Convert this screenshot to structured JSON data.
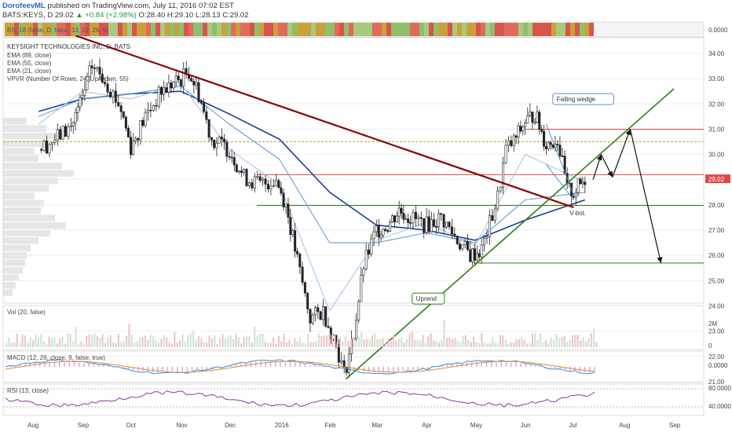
{
  "header": {
    "author": "DorofeevML",
    "published_text": "published on TradingView.com, July 11, 2016 07:02 EST",
    "symbol_line": "BATS:KEYS, D",
    "last": "29.02",
    "change": "▲ +0.84 (+2.98%)",
    "open": "O:28.40",
    "high": "H:29.10",
    "low": "L:28.13",
    "close": "C:29.02"
  },
  "chart_data": {
    "type": "line",
    "title": "KEYSIGHT TECHNOLOGIES INC, D, BATS",
    "legend": [
      "EMA (89, close)",
      "EMA (55, close)",
      "EMA (21, close)",
      "VPVR (Number Of Rows, 24, Up/Down, 55)"
    ],
    "top_strip_label": "BS_18 (false, D, false, 13, 12, 26, 9)",
    "top_strip_value": "0.0000",
    "x_ticks": [
      "Aug",
      "Sep",
      "Oct",
      "Nov",
      "Dec",
      "2016",
      "Feb",
      "Mar",
      "Apr",
      "May",
      "Jun",
      "Jul",
      "Aug",
      "Sep"
    ],
    "y_ticks": [
      "34.00",
      "33.00",
      "32.00",
      "31.00",
      "30.00",
      "29.02",
      "28.00",
      "27.00",
      "26.00",
      "25.00",
      "24.00",
      "23.00",
      "22.00",
      "21.00"
    ],
    "ylim": [
      20.5,
      34.5
    ],
    "price_series": [
      {
        "date": "2015-08-05",
        "close": 30.2
      },
      {
        "date": "2015-08-15",
        "close": 30.6
      },
      {
        "date": "2015-08-25",
        "close": 31.1
      },
      {
        "date": "2015-09-01",
        "close": 32.2
      },
      {
        "date": "2015-09-07",
        "close": 33.5
      },
      {
        "date": "2015-09-15",
        "close": 33.0
      },
      {
        "date": "2015-09-25",
        "close": 31.8
      },
      {
        "date": "2015-10-01",
        "close": 30.3
      },
      {
        "date": "2015-10-10",
        "close": 31.5
      },
      {
        "date": "2015-10-20",
        "close": 32.5
      },
      {
        "date": "2015-11-01",
        "close": 33.0
      },
      {
        "date": "2015-11-06",
        "close": 33.3
      },
      {
        "date": "2015-11-12",
        "close": 32.4
      },
      {
        "date": "2015-11-20",
        "close": 30.6
      },
      {
        "date": "2015-12-01",
        "close": 30.2
      },
      {
        "date": "2015-12-10",
        "close": 29.1
      },
      {
        "date": "2015-12-20",
        "close": 28.8
      },
      {
        "date": "2015-12-30",
        "close": 29.0
      },
      {
        "date": "2016-01-05",
        "close": 28.0
      },
      {
        "date": "2016-01-12",
        "close": 25.8
      },
      {
        "date": "2016-01-20",
        "close": 23.5
      },
      {
        "date": "2016-01-28",
        "close": 23.8
      },
      {
        "date": "2016-02-05",
        "close": 22.5
      },
      {
        "date": "2016-02-10",
        "close": 21.3
      },
      {
        "date": "2016-02-16",
        "close": 22.9
      },
      {
        "date": "2016-02-22",
        "close": 25.6
      },
      {
        "date": "2016-03-01",
        "close": 27.0
      },
      {
        "date": "2016-03-08",
        "close": 27.2
      },
      {
        "date": "2016-03-15",
        "close": 27.8
      },
      {
        "date": "2016-03-22",
        "close": 27.5
      },
      {
        "date": "2016-04-01",
        "close": 27.2
      },
      {
        "date": "2016-04-10",
        "close": 27.5
      },
      {
        "date": "2016-04-20",
        "close": 26.6
      },
      {
        "date": "2016-04-28",
        "close": 26.0
      },
      {
        "date": "2016-05-05",
        "close": 26.2
      },
      {
        "date": "2016-05-15",
        "close": 28.3
      },
      {
        "date": "2016-05-20",
        "close": 30.2
      },
      {
        "date": "2016-05-25",
        "close": 30.5
      },
      {
        "date": "2016-06-01",
        "close": 31.3
      },
      {
        "date": "2016-06-07",
        "close": 31.6
      },
      {
        "date": "2016-06-14",
        "close": 30.4
      },
      {
        "date": "2016-06-21",
        "close": 30.6
      },
      {
        "date": "2016-06-27",
        "close": 28.6
      },
      {
        "date": "2016-07-01",
        "close": 28.5
      },
      {
        "date": "2016-07-08",
        "close": 29.02
      }
    ],
    "ema_lines": [
      {
        "name": "EMA (89, close)",
        "color": "#1b3f8f",
        "values": [
          {
            "date": "2015-08-05",
            "v": 31.7
          },
          {
            "date": "2015-09-01",
            "v": 32.2
          },
          {
            "date": "2015-10-01",
            "v": 32.4
          },
          {
            "date": "2015-11-01",
            "v": 32.5
          },
          {
            "date": "2015-12-01",
            "v": 31.6
          },
          {
            "date": "2016-01-01",
            "v": 30.6
          },
          {
            "date": "2016-02-01",
            "v": 28.5
          },
          {
            "date": "2016-03-01",
            "v": 27.2
          },
          {
            "date": "2016-04-01",
            "v": 27.0
          },
          {
            "date": "2016-05-01",
            "v": 26.6
          },
          {
            "date": "2016-06-01",
            "v": 27.4
          },
          {
            "date": "2016-07-08",
            "v": 28.2
          }
        ]
      },
      {
        "name": "EMA (55, close)",
        "color": "#6a9bd3",
        "values": [
          {
            "date": "2015-08-05",
            "v": 31.5
          },
          {
            "date": "2015-09-01",
            "v": 32.2
          },
          {
            "date": "2015-10-01",
            "v": 32.4
          },
          {
            "date": "2015-11-01",
            "v": 32.7
          },
          {
            "date": "2015-12-01",
            "v": 31.2
          },
          {
            "date": "2016-01-01",
            "v": 29.8
          },
          {
            "date": "2016-02-01",
            "v": 26.5
          },
          {
            "date": "2016-03-01",
            "v": 26.5
          },
          {
            "date": "2016-04-01",
            "v": 26.9
          },
          {
            "date": "2016-05-01",
            "v": 26.5
          },
          {
            "date": "2016-06-01",
            "v": 28.2
          },
          {
            "date": "2016-07-08",
            "v": 28.5
          }
        ]
      },
      {
        "name": "EMA (21, close)",
        "color": "#a6c8ec",
        "values": [
          {
            "date": "2015-08-05",
            "v": 31.2
          },
          {
            "date": "2015-09-01",
            "v": 32.5
          },
          {
            "date": "2015-10-01",
            "v": 32.2
          },
          {
            "date": "2015-11-01",
            "v": 32.8
          },
          {
            "date": "2015-12-01",
            "v": 30.2
          },
          {
            "date": "2016-01-01",
            "v": 28.8
          },
          {
            "date": "2016-02-01",
            "v": 23.8
          },
          {
            "date": "2016-03-01",
            "v": 26.6
          },
          {
            "date": "2016-04-01",
            "v": 27.3
          },
          {
            "date": "2016-05-01",
            "v": 26.4
          },
          {
            "date": "2016-06-01",
            "v": 30.0
          },
          {
            "date": "2016-07-08",
            "v": 28.9
          }
        ]
      }
    ],
    "drawings": {
      "downtrend_line": {
        "from": {
          "date": "2015-08-28",
          "price": 34.7
        },
        "to": {
          "date": "2016-07-01",
          "price": 27.9
        },
        "color": "#8b0000"
      },
      "uptrend_line": {
        "from": {
          "date": "2016-02-11",
          "price": 21.1
        },
        "to": {
          "date": "2016-09-01",
          "price": 32.6
        },
        "color": "#2e7d1a"
      },
      "hlines": [
        {
          "price": 31.0,
          "color": "#e04848",
          "from": "2016-06-01"
        },
        {
          "price": 30.5,
          "color": "#b8a82a",
          "dashed": true
        },
        {
          "price": 29.2,
          "color": "#e04848",
          "from": "2015-12-18"
        },
        {
          "price": 27.98,
          "color": "#2e7d1a",
          "from": "2015-12-18"
        },
        {
          "price": 25.7,
          "color": "#2e7d1a",
          "from": "2016-04-30"
        }
      ],
      "wedge_upper": [
        {
          "date": "2016-06-14",
          "price": 31.2
        },
        {
          "date": "2016-07-01",
          "price": 28.4
        }
      ],
      "wedge_lower": [
        {
          "date": "2016-06-14",
          "price": 29.6
        },
        {
          "date": "2016-07-01",
          "price": 28.2
        }
      ],
      "projection_arrows": [
        {
          "date": "2016-07-13",
          "price": 29.0
        },
        {
          "date": "2016-07-18",
          "price": 30.0
        },
        {
          "date": "2016-07-25",
          "price": 29.1
        },
        {
          "date": "2016-08-05",
          "price": 31.0
        },
        {
          "date": "2016-08-24",
          "price": 25.7
        }
      ],
      "labels": [
        {
          "text": "Falling wedge",
          "date": "2016-06-20",
          "price": 32.1
        },
        {
          "text": "Uprend",
          "date": "2016-03-25",
          "price": 24.2
        },
        {
          "text": "V-bot.",
          "date": "2016-06-28",
          "price": 27.6
        }
      ]
    },
    "volume": {
      "label": "Vol (20, false)",
      "ticks": [
        "2M",
        "0"
      ]
    },
    "macd": {
      "label": "MACD (12, 26, close, 9, false, true)",
      "value": "0.0000"
    },
    "rsi": {
      "label": "RSI (13, close)",
      "ticks": [
        "80.0000",
        "40.0000"
      ]
    }
  }
}
